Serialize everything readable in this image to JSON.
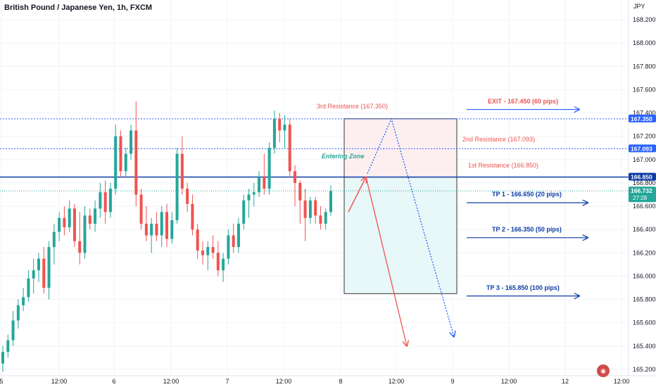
{
  "header": {
    "title": "British Pound / Japanese Yen, 1h, FXCM"
  },
  "price_axis": {
    "unit": "JPY",
    "ticks": [
      "168.200",
      "168.000",
      "167.800",
      "167.600",
      "167.400",
      "167.200",
      "167.000",
      "166.800",
      "166.600",
      "166.400",
      "166.200",
      "166.000",
      "165.800",
      "165.600",
      "165.400",
      "165.200"
    ]
  },
  "time_axis": {
    "ticks": [
      "5",
      "12:00",
      "6",
      "12:00",
      "7",
      "12:00",
      "8",
      "12:00",
      "9",
      "12:00",
      "12",
      "12:00"
    ]
  },
  "colors": {
    "up": "#26a69a",
    "down": "#ef5350",
    "blue": "#2962ff",
    "navy": "#0d3ca6",
    "red_zone_fill": "#fdeff0",
    "green_zone_fill": "#e8f7f7",
    "grid": "#f0f3fa"
  },
  "price_labels": {
    "r3": "167.350",
    "r2": "167.093",
    "r1": "166.850",
    "current": "166.732",
    "countdown": "27:28"
  },
  "annotations": {
    "r3": "3rd Resistance (167.350)",
    "r2": "2nd Resistance (167.093)",
    "r1": "1st Resistance (166.850)",
    "entering_zone": "Entering Zone",
    "exit": "EXIT - 167.450 (60 pips)",
    "tp1": "TP 1 - 166.650 (20 pips)",
    "tp2": "TP 2 - 166.350 (50 pips)",
    "tp3": "TP 3 - 165.850 (100 pips)"
  },
  "chart_data": {
    "type": "candlestick",
    "title": "British Pound / Japanese Yen, 1h, FXCM",
    "ylabel": "JPY",
    "ylim": [
      165.15,
      168.3
    ],
    "levels": {
      "resistance_3": 167.35,
      "resistance_2": 167.093,
      "resistance_1": 166.85,
      "current": 166.732
    },
    "targets": {
      "exit": 167.45,
      "tp1": 166.65,
      "tp2": 166.35,
      "tp3": 165.85
    },
    "candles": [
      {
        "o": 165.25,
        "h": 165.4,
        "l": 165.18,
        "c": 165.35
      },
      {
        "o": 165.35,
        "h": 165.5,
        "l": 165.3,
        "c": 165.45
      },
      {
        "o": 165.45,
        "h": 165.7,
        "l": 165.4,
        "c": 165.62
      },
      {
        "o": 165.62,
        "h": 165.8,
        "l": 165.55,
        "c": 165.75
      },
      {
        "o": 165.75,
        "h": 165.9,
        "l": 165.7,
        "c": 165.82
      },
      {
        "o": 165.82,
        "h": 166.05,
        "l": 165.78,
        "c": 165.98
      },
      {
        "o": 165.98,
        "h": 166.15,
        "l": 165.85,
        "c": 166.05
      },
      {
        "o": 166.05,
        "h": 166.2,
        "l": 165.95,
        "c": 166.15
      },
      {
        "o": 166.15,
        "h": 166.25,
        "l": 165.85,
        "c": 165.9
      },
      {
        "o": 165.9,
        "h": 166.3,
        "l": 165.8,
        "c": 166.25
      },
      {
        "o": 166.25,
        "h": 166.45,
        "l": 166.1,
        "c": 166.38
      },
      {
        "o": 166.38,
        "h": 166.55,
        "l": 166.3,
        "c": 166.5
      },
      {
        "o": 166.5,
        "h": 166.6,
        "l": 166.35,
        "c": 166.42
      },
      {
        "o": 166.42,
        "h": 166.65,
        "l": 166.38,
        "c": 166.58
      },
      {
        "o": 166.58,
        "h": 166.62,
        "l": 166.25,
        "c": 166.3
      },
      {
        "o": 166.3,
        "h": 166.55,
        "l": 166.1,
        "c": 166.2
      },
      {
        "o": 166.2,
        "h": 166.6,
        "l": 166.15,
        "c": 166.52
      },
      {
        "o": 166.52,
        "h": 166.58,
        "l": 166.4,
        "c": 166.45
      },
      {
        "o": 166.45,
        "h": 166.65,
        "l": 166.38,
        "c": 166.58
      },
      {
        "o": 166.58,
        "h": 166.8,
        "l": 166.5,
        "c": 166.72
      },
      {
        "o": 166.72,
        "h": 166.82,
        "l": 166.45,
        "c": 166.55
      },
      {
        "o": 166.55,
        "h": 166.8,
        "l": 166.5,
        "c": 166.75
      },
      {
        "o": 166.75,
        "h": 167.3,
        "l": 166.7,
        "c": 167.2
      },
      {
        "o": 167.2,
        "h": 167.25,
        "l": 166.85,
        "c": 166.9
      },
      {
        "o": 166.9,
        "h": 167.1,
        "l": 166.85,
        "c": 167.05
      },
      {
        "o": 167.05,
        "h": 167.3,
        "l": 167.0,
        "c": 167.25
      },
      {
        "o": 167.25,
        "h": 167.5,
        "l": 166.6,
        "c": 166.7
      },
      {
        "o": 166.7,
        "h": 166.75,
        "l": 166.4,
        "c": 166.45
      },
      {
        "o": 166.45,
        "h": 166.6,
        "l": 166.3,
        "c": 166.35
      },
      {
        "o": 166.35,
        "h": 166.5,
        "l": 166.2,
        "c": 166.45
      },
      {
        "o": 166.45,
        "h": 166.55,
        "l": 166.3,
        "c": 166.35
      },
      {
        "o": 166.35,
        "h": 166.6,
        "l": 166.25,
        "c": 166.55
      },
      {
        "o": 166.55,
        "h": 166.62,
        "l": 166.25,
        "c": 166.32
      },
      {
        "o": 166.32,
        "h": 166.55,
        "l": 166.28,
        "c": 166.48
      },
      {
        "o": 166.48,
        "h": 167.1,
        "l": 166.45,
        "c": 167.05
      },
      {
        "o": 167.05,
        "h": 167.2,
        "l": 166.7,
        "c": 166.75
      },
      {
        "o": 166.75,
        "h": 166.8,
        "l": 166.55,
        "c": 166.62
      },
      {
        "o": 166.62,
        "h": 166.7,
        "l": 166.35,
        "c": 166.4
      },
      {
        "o": 166.4,
        "h": 166.45,
        "l": 166.15,
        "c": 166.22
      },
      {
        "o": 166.22,
        "h": 166.3,
        "l": 166.1,
        "c": 166.18
      },
      {
        "o": 166.18,
        "h": 166.3,
        "l": 166.05,
        "c": 166.25
      },
      {
        "o": 166.25,
        "h": 166.35,
        "l": 166.15,
        "c": 166.2
      },
      {
        "o": 166.2,
        "h": 166.3,
        "l": 166.0,
        "c": 166.05
      },
      {
        "o": 166.05,
        "h": 166.2,
        "l": 165.95,
        "c": 166.15
      },
      {
        "o": 166.15,
        "h": 166.4,
        "l": 166.1,
        "c": 166.35
      },
      {
        "o": 166.35,
        "h": 166.45,
        "l": 166.2,
        "c": 166.25
      },
      {
        "o": 166.25,
        "h": 166.5,
        "l": 166.2,
        "c": 166.45
      },
      {
        "o": 166.45,
        "h": 166.7,
        "l": 166.4,
        "c": 166.65
      },
      {
        "o": 166.65,
        "h": 166.75,
        "l": 166.5,
        "c": 166.7
      },
      {
        "o": 166.7,
        "h": 166.8,
        "l": 166.6,
        "c": 166.72
      },
      {
        "o": 166.72,
        "h": 166.9,
        "l": 166.68,
        "c": 166.85
      },
      {
        "o": 166.85,
        "h": 167.05,
        "l": 166.7,
        "c": 166.75
      },
      {
        "o": 166.75,
        "h": 167.15,
        "l": 166.7,
        "c": 167.1
      },
      {
        "o": 167.1,
        "h": 167.42,
        "l": 167.05,
        "c": 167.35
      },
      {
        "o": 167.35,
        "h": 167.4,
        "l": 167.15,
        "c": 167.25
      },
      {
        "o": 167.25,
        "h": 167.38,
        "l": 167.1,
        "c": 167.3
      },
      {
        "o": 167.3,
        "h": 167.35,
        "l": 166.85,
        "c": 166.9
      },
      {
        "o": 166.9,
        "h": 166.95,
        "l": 166.6,
        "c": 166.8
      },
      {
        "o": 166.8,
        "h": 166.82,
        "l": 166.45,
        "c": 166.65
      },
      {
        "o": 166.65,
        "h": 166.75,
        "l": 166.3,
        "c": 166.5
      },
      {
        "o": 166.5,
        "h": 166.68,
        "l": 166.45,
        "c": 166.65
      },
      {
        "o": 166.65,
        "h": 166.68,
        "l": 166.45,
        "c": 166.52
      },
      {
        "o": 166.52,
        "h": 166.6,
        "l": 166.4,
        "c": 166.45
      },
      {
        "o": 166.45,
        "h": 166.58,
        "l": 166.4,
        "c": 166.55
      },
      {
        "o": 166.55,
        "h": 166.78,
        "l": 166.52,
        "c": 166.73
      }
    ]
  }
}
